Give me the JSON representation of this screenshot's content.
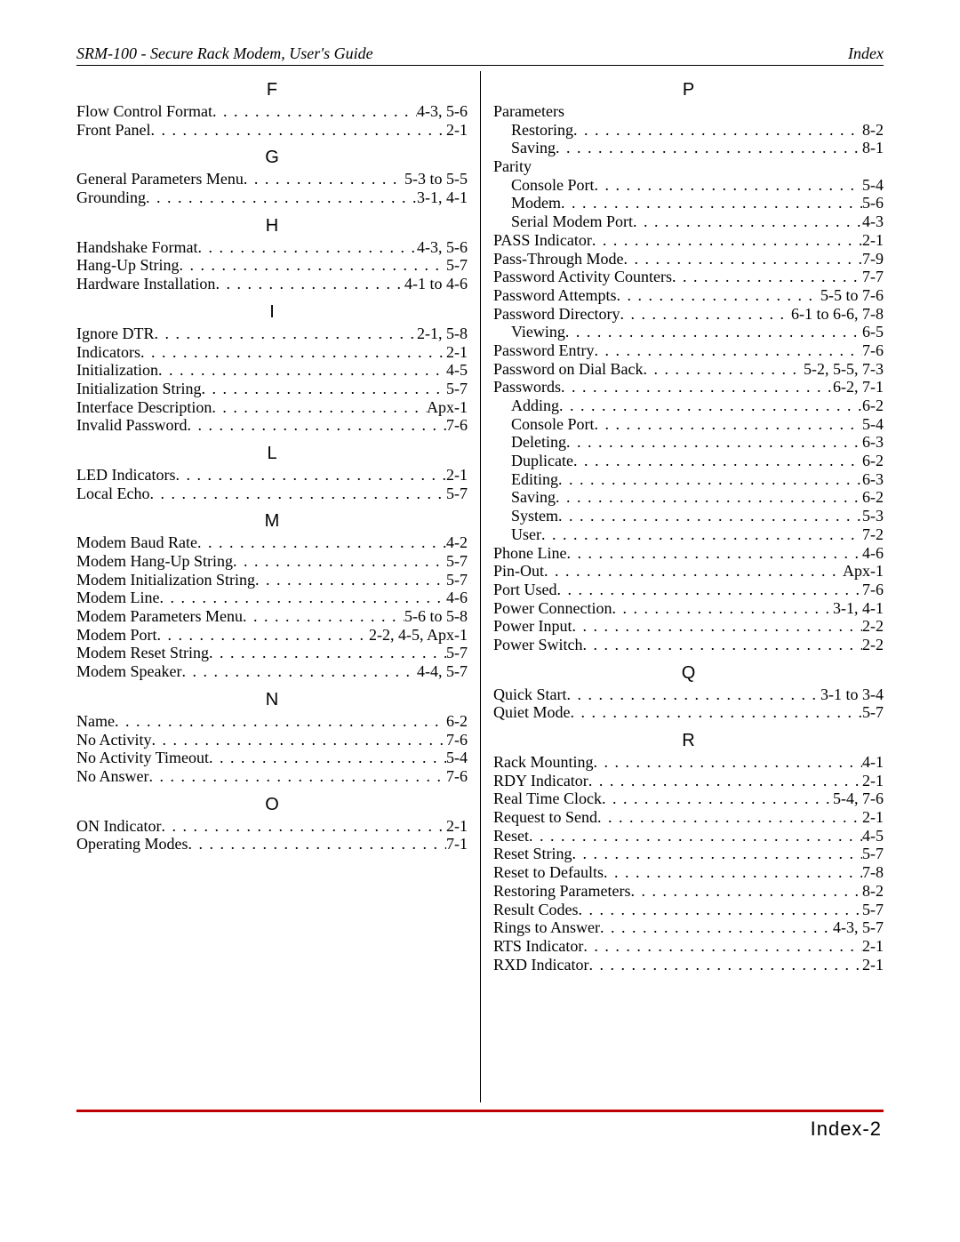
{
  "header": {
    "left": "SRM-100 - Secure Rack Modem, User's Guide",
    "right": "Index"
  },
  "footer": {
    "page_label": "Index-2",
    "rule_color": "#c00000"
  },
  "left_column": [
    {
      "type": "letter",
      "text": "F"
    },
    {
      "type": "entry",
      "term": "Flow Control Format",
      "pages": "4-3, 5-6"
    },
    {
      "type": "entry",
      "term": "Front Panel",
      "pages": "2-1"
    },
    {
      "type": "letter",
      "text": "G"
    },
    {
      "type": "entry",
      "term": "General Parameters Menu",
      "pages": "5-3 to 5-5"
    },
    {
      "type": "entry",
      "term": "Grounding",
      "pages": "3-1, 4-1"
    },
    {
      "type": "letter",
      "text": "H"
    },
    {
      "type": "entry",
      "term": "Handshake Format",
      "pages": "4-3, 5-6"
    },
    {
      "type": "entry",
      "term": "Hang-Up String",
      "pages": "5-7"
    },
    {
      "type": "entry",
      "term": "Hardware Installation",
      "pages": "4-1 to 4-6"
    },
    {
      "type": "letter",
      "text": "I"
    },
    {
      "type": "entry",
      "term": "Ignore DTR",
      "pages": "2-1, 5-8"
    },
    {
      "type": "entry",
      "term": "Indicators",
      "pages": "2-1"
    },
    {
      "type": "entry",
      "term": "Initialization",
      "pages": "4-5"
    },
    {
      "type": "entry",
      "term": "Initialization String",
      "pages": "5-7"
    },
    {
      "type": "entry",
      "term": "Interface Description",
      "pages": "Apx-1"
    },
    {
      "type": "entry",
      "term": "Invalid Password",
      "pages": "7-6"
    },
    {
      "type": "letter",
      "text": "L"
    },
    {
      "type": "entry",
      "term": "LED Indicators",
      "pages": "2-1"
    },
    {
      "type": "entry",
      "term": "Local Echo",
      "pages": "5-7"
    },
    {
      "type": "letter",
      "text": "M"
    },
    {
      "type": "entry",
      "term": "Modem Baud Rate",
      "pages": "4-2"
    },
    {
      "type": "entry",
      "term": "Modem Hang-Up String",
      "pages": "5-7"
    },
    {
      "type": "entry",
      "term": "Modem Initialization String",
      "pages": "5-7"
    },
    {
      "type": "entry",
      "term": "Modem Line",
      "pages": "4-6"
    },
    {
      "type": "entry",
      "term": "Modem Parameters Menu",
      "pages": "5-6 to 5-8"
    },
    {
      "type": "entry",
      "term": "Modem Port",
      "pages": "2-2, 4-5, Apx-1"
    },
    {
      "type": "entry",
      "term": "Modem Reset String",
      "pages": "5-7"
    },
    {
      "type": "entry",
      "term": "Modem Speaker",
      "pages": "4-4, 5-7"
    },
    {
      "type": "letter",
      "text": "N"
    },
    {
      "type": "entry",
      "term": "Name",
      "pages": "6-2"
    },
    {
      "type": "entry",
      "term": "No Activity",
      "pages": "7-6"
    },
    {
      "type": "entry",
      "term": "No Activity Timeout",
      "pages": "5-4"
    },
    {
      "type": "entry",
      "term": "No Answer",
      "pages": "7-6"
    },
    {
      "type": "letter",
      "text": "O"
    },
    {
      "type": "entry",
      "term": "ON Indicator",
      "pages": "2-1"
    },
    {
      "type": "entry",
      "term": "Operating Modes",
      "pages": "7-1"
    }
  ],
  "right_column": [
    {
      "type": "letter",
      "text": "P"
    },
    {
      "type": "heading",
      "term": "Parameters"
    },
    {
      "type": "subentry",
      "term": "Restoring",
      "pages": "8-2"
    },
    {
      "type": "subentry",
      "term": "Saving",
      "pages": "8-1"
    },
    {
      "type": "heading",
      "term": "Parity"
    },
    {
      "type": "subentry",
      "term": "Console Port",
      "pages": "5-4"
    },
    {
      "type": "subentry",
      "term": "Modem",
      "pages": "5-6"
    },
    {
      "type": "subentry",
      "term": "Serial Modem Port",
      "pages": "4-3"
    },
    {
      "type": "entry",
      "term": "PASS Indicator",
      "pages": "2-1"
    },
    {
      "type": "entry",
      "term": "Pass-Through Mode",
      "pages": "7-9"
    },
    {
      "type": "entry",
      "term": "Password Activity Counters",
      "pages": "7-7"
    },
    {
      "type": "entry",
      "term": "Password Attempts",
      "pages": "5-5 to 7-6"
    },
    {
      "type": "entry",
      "term": "Password Directory",
      "pages": "6-1 to 6-6, 7-8"
    },
    {
      "type": "subentry",
      "term": "Viewing",
      "pages": "6-5"
    },
    {
      "type": "entry",
      "term": "Password Entry",
      "pages": "7-6"
    },
    {
      "type": "entry",
      "term": "Password on Dial Back",
      "pages": "5-2, 5-5, 7-3"
    },
    {
      "type": "entry",
      "term": "Passwords",
      "pages": "6-2, 7-1"
    },
    {
      "type": "subentry",
      "term": "Adding",
      "pages": "6-2"
    },
    {
      "type": "subentry",
      "term": "Console Port",
      "pages": "5-4"
    },
    {
      "type": "subentry",
      "term": "Deleting",
      "pages": "6-3"
    },
    {
      "type": "subentry",
      "term": "Duplicate",
      "pages": "6-2"
    },
    {
      "type": "subentry",
      "term": "Editing",
      "pages": "6-3"
    },
    {
      "type": "subentry",
      "term": "Saving",
      "pages": "6-2"
    },
    {
      "type": "subentry",
      "term": "System",
      "pages": "5-3"
    },
    {
      "type": "subentry",
      "term": "User",
      "pages": "7-2"
    },
    {
      "type": "entry",
      "term": "Phone Line",
      "pages": "4-6"
    },
    {
      "type": "entry",
      "term": "Pin-Out",
      "pages": "Apx-1"
    },
    {
      "type": "entry",
      "term": "Port Used",
      "pages": "7-6"
    },
    {
      "type": "entry",
      "term": "Power Connection",
      "pages": "3-1, 4-1"
    },
    {
      "type": "entry",
      "term": "Power Input",
      "pages": "2-2"
    },
    {
      "type": "entry",
      "term": "Power Switch",
      "pages": "2-2"
    },
    {
      "type": "letter",
      "text": "Q"
    },
    {
      "type": "entry",
      "term": "Quick Start",
      "pages": "3-1 to 3-4"
    },
    {
      "type": "entry",
      "term": "Quiet Mode",
      "pages": "5-7"
    },
    {
      "type": "letter",
      "text": "R"
    },
    {
      "type": "entry",
      "term": "Rack Mounting",
      "pages": "4-1"
    },
    {
      "type": "entry",
      "term": "RDY Indicator",
      "pages": "2-1"
    },
    {
      "type": "entry",
      "term": "Real Time Clock",
      "pages": "5-4, 7-6"
    },
    {
      "type": "entry",
      "term": "Request to Send",
      "pages": "2-1"
    },
    {
      "type": "entry",
      "term": "Reset",
      "pages": "4-5"
    },
    {
      "type": "entry",
      "term": "Reset String",
      "pages": "5-7"
    },
    {
      "type": "entry",
      "term": "Reset to Defaults",
      "pages": "7-8"
    },
    {
      "type": "entry",
      "term": "Restoring Parameters",
      "pages": "8-2"
    },
    {
      "type": "entry",
      "term": "Result Codes",
      "pages": "5-7"
    },
    {
      "type": "entry",
      "term": "Rings to Answer",
      "pages": "4-3, 5-7"
    },
    {
      "type": "entry",
      "term": "RTS Indicator",
      "pages": "2-1"
    },
    {
      "type": "entry",
      "term": "RXD Indicator",
      "pages": "2-1"
    }
  ]
}
